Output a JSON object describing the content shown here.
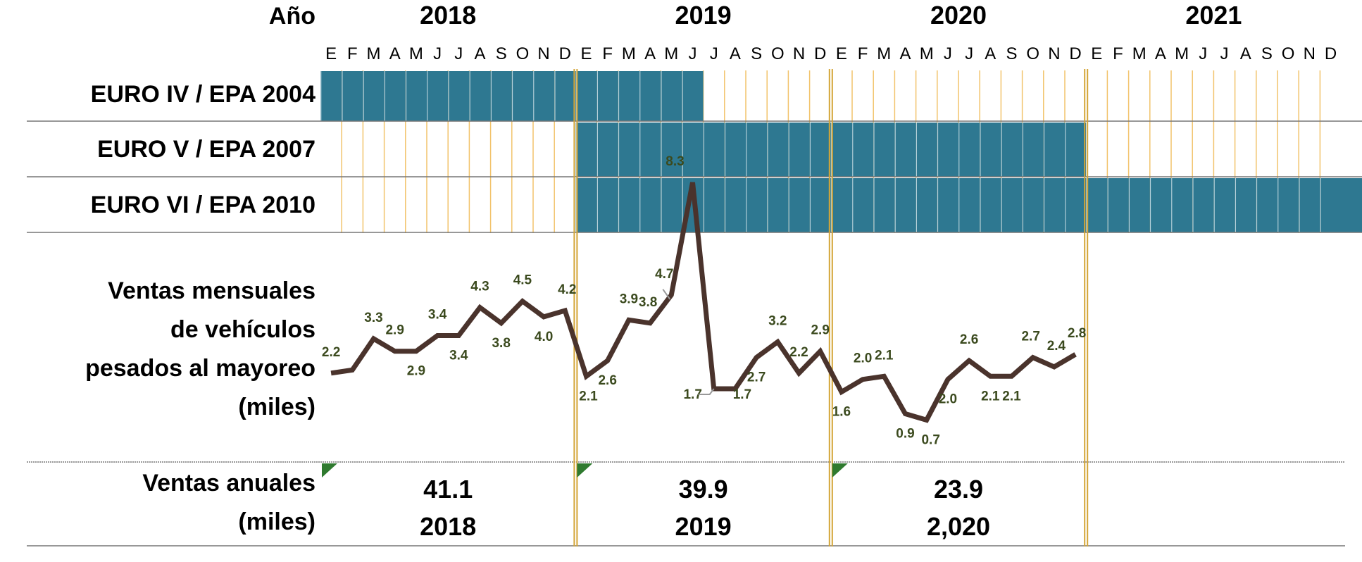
{
  "header": {
    "year_label": "Año",
    "years": [
      "2018",
      "2019",
      "2020",
      "2021"
    ],
    "month_letters": [
      "E",
      "F",
      "M",
      "A",
      "M",
      "J",
      "J",
      "A",
      "S",
      "O",
      "N",
      "D"
    ]
  },
  "colors": {
    "bar_fill": "#2e7891",
    "line": "#4a332c",
    "value_label": "#3b4a1e",
    "gridline": "#f2c36b",
    "year_divider": "#d4a537",
    "corner_mark": "#2f7a2f"
  },
  "row_labels": {
    "euro4": "EURO IV / EPA 2004",
    "euro5": "EURO V / EPA 2007",
    "euro6": "EURO VI / EPA 2010",
    "monthly_lines": [
      "Ventas mensuales",
      "de vehículos",
      "pesados al mayoreo",
      "(miles)"
    ],
    "annual_lines": [
      "Ventas anuales",
      "(miles)"
    ]
  },
  "chart_data": {
    "type": "line",
    "title": "",
    "x_unit": "month",
    "x_range": [
      "2018-01",
      "2021-12"
    ],
    "standards": [
      {
        "label": "EURO IV / EPA 2004",
        "start": "2018-01",
        "end": "2019-06"
      },
      {
        "label": "EURO V / EPA 2007",
        "start": "2019-01",
        "end": "2020-12"
      },
      {
        "label": "EURO VI / EPA 2010",
        "start": "2019-01",
        "end": "2021-12"
      }
    ],
    "monthly_sales": {
      "x": [
        "2018-01",
        "2018-02",
        "2018-03",
        "2018-04",
        "2018-05",
        "2018-06",
        "2018-07",
        "2018-08",
        "2018-09",
        "2018-10",
        "2018-11",
        "2018-12",
        "2019-01",
        "2019-02",
        "2019-03",
        "2019-04",
        "2019-05",
        "2019-06",
        "2019-07",
        "2019-08",
        "2019-09",
        "2019-10",
        "2019-11",
        "2019-12",
        "2020-01",
        "2020-02",
        "2020-03",
        "2020-04",
        "2020-05",
        "2020-06",
        "2020-07",
        "2020-08",
        "2020-09",
        "2020-10",
        "2020-11",
        "2020-12"
      ],
      "values": [
        2.2,
        2.3,
        3.3,
        2.9,
        2.9,
        3.4,
        3.4,
        4.3,
        3.8,
        4.5,
        4.0,
        4.2,
        2.1,
        2.6,
        3.9,
        3.8,
        4.7,
        8.3,
        1.7,
        1.7,
        2.7,
        3.2,
        2.2,
        2.9,
        1.6,
        2.0,
        2.1,
        0.9,
        0.7,
        2.0,
        2.6,
        2.1,
        2.1,
        2.7,
        2.4,
        2.8
      ],
      "labels": [
        "2.2",
        "",
        "3.3",
        "2.9",
        "2.9",
        "3.4",
        "3.4",
        "4.3",
        "3.8",
        "4.5",
        "4.0",
        "4.2",
        "2.1",
        "2.6",
        "3.9",
        "3.8",
        "4.7",
        "8.3",
        "1.7",
        "1.7",
        "2.7",
        "3.2",
        "2.2",
        "2.9",
        "1.6",
        "2.0",
        "2.1",
        "0.9",
        "0.7",
        "2.0",
        "2.6",
        "2.1",
        "2.1",
        "2.7",
        "2.4",
        "2.8"
      ]
    },
    "annual_sales": [
      {
        "value": "41.1",
        "year": "2018"
      },
      {
        "value": "39.9",
        "year": "2019"
      },
      {
        "value": "23.9",
        "year": "2,020"
      }
    ]
  }
}
